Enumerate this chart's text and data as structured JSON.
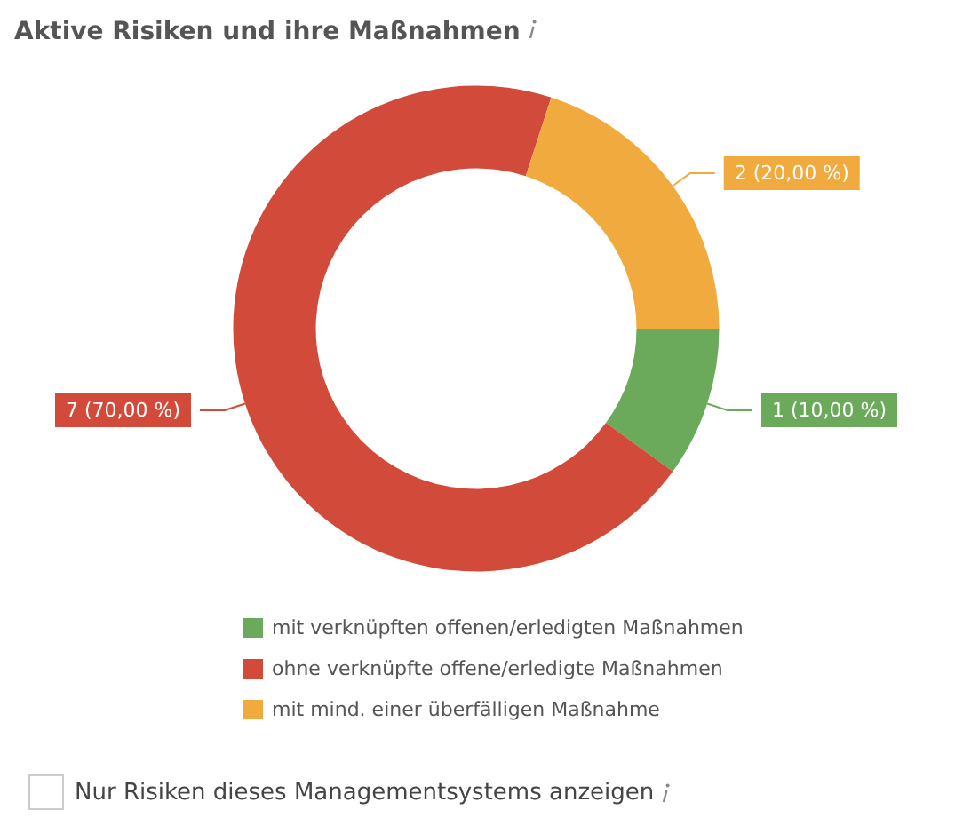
{
  "chart_data": {
    "type": "donut",
    "title": "Aktive Risiken und ihre Maßnahmen",
    "categories": [
      "mit verknüpften offenen/erledigten Maßnahmen",
      "ohne verknüpfte offene/erledigte Maßnahmen",
      "mit mind. einer überfälligen Maßnahme"
    ],
    "values": [
      1,
      7,
      2
    ],
    "colors": [
      "#6aaa5a",
      "#d24a3a",
      "#f1aa3d"
    ],
    "value_labels": [
      "1 (10,00 %)",
      "7 (70,00 %)",
      "2 (20,00 %)"
    ],
    "legend": "bottom",
    "annotations": [
      "Nur Risiken dieses Managementsystems anzeigen"
    ]
  }
}
